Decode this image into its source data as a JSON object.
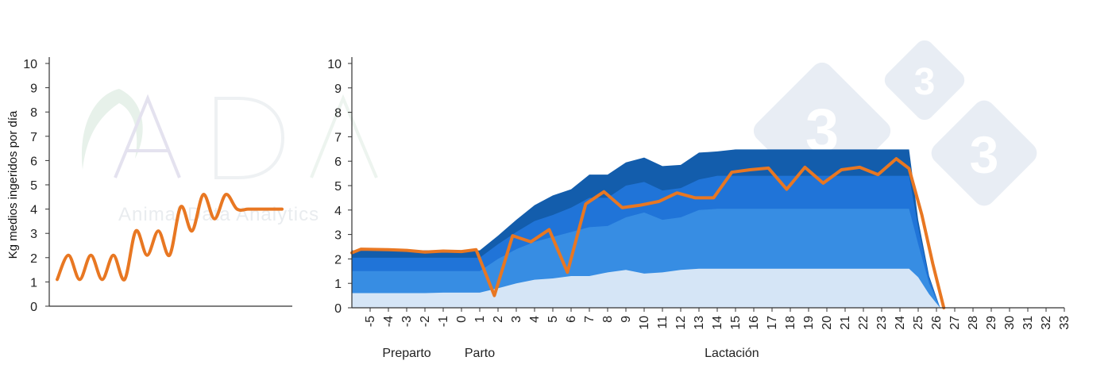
{
  "colors": {
    "orange": "#E87722",
    "band1": "#D5E5F6",
    "band2": "#378DE3",
    "band3": "#2074D8",
    "band4": "#135DAC",
    "axis": "#333333",
    "watermark_diamond": "#E8EDF4"
  },
  "watermarks": {
    "logo_text": "ADA",
    "logo_subtitle": "Animal Data Analytics",
    "logo_digit": "3"
  },
  "chart_data": [
    {
      "type": "line",
      "title": "",
      "ylabel": "Kg medios ingeridos por día",
      "xlabel": "",
      "ylim": [
        0,
        10
      ],
      "yticks": [
        "0",
        "1",
        "2",
        "3",
        "4",
        "5",
        "6",
        "7",
        "8",
        "9",
        "10"
      ],
      "grid": false,
      "x": [
        0,
        0.05,
        0.1,
        0.15,
        0.2,
        0.25,
        0.3,
        0.35,
        0.4,
        0.45,
        0.5,
        0.55,
        0.6,
        0.65,
        0.7,
        0.75,
        0.8,
        0.85,
        0.9,
        0.95,
        1.0
      ],
      "series": [
        {
          "values": [
            1.1,
            2.1,
            1.1,
            2.1,
            1.1,
            2.1,
            1.1,
            3.1,
            2.1,
            3.1,
            2.1,
            4.1,
            3.1,
            4.6,
            3.6,
            4.6,
            4.0,
            4.0,
            4.0,
            4.0,
            4.0
          ]
        }
      ]
    },
    {
      "type": "area",
      "title": "",
      "xlabel": "",
      "ylabel": "",
      "ylim": [
        0,
        10
      ],
      "yticks": [
        "0",
        "1",
        "2",
        "3",
        "4",
        "5",
        "6",
        "7",
        "8",
        "9",
        "10"
      ],
      "grid": false,
      "x": [
        -6,
        -5,
        -4,
        -3,
        -2,
        -1,
        0,
        1,
        2,
        3,
        4,
        5,
        6,
        7,
        8,
        9,
        10,
        11,
        12,
        13,
        14,
        15,
        16,
        17,
        18,
        19,
        20,
        21,
        22,
        23,
        24,
        25,
        26,
        27,
        28,
        29,
        30,
        31,
        32,
        33
      ],
      "x_tick_labels": [
        "-5",
        "-4",
        "-3",
        "-2",
        "-1",
        "0",
        "1",
        "2",
        "3",
        "4",
        "5",
        "6",
        "7",
        "8",
        "9",
        "10",
        "11",
        "12",
        "13",
        "14",
        "15",
        "16",
        "17",
        "18",
        "19",
        "20",
        "21",
        "22",
        "23",
        "24",
        "25",
        "26",
        "27",
        "28",
        "29",
        "30",
        "31",
        "32",
        "33"
      ],
      "x_tick_values": [
        -5,
        -4,
        -3,
        -2,
        -1,
        0,
        1,
        2,
        3,
        4,
        5,
        6,
        7,
        8,
        9,
        10,
        11,
        12,
        13,
        14,
        15,
        16,
        17,
        18,
        19,
        20,
        21,
        22,
        23,
        24,
        25,
        26,
        27,
        28,
        29,
        30,
        31,
        32,
        33
      ],
      "phases": [
        {
          "label": "Preparto",
          "at": -3
        },
        {
          "label": "Parto",
          "at": 1
        },
        {
          "label": "Lactación",
          "at": 14.8
        }
      ],
      "bands": [
        {
          "x": [
            -6,
            -5.5,
            -4,
            -3,
            -2,
            -1,
            0,
            1,
            2,
            3,
            4,
            5,
            6,
            7,
            8,
            9,
            10,
            11,
            12,
            13,
            14,
            15,
            16,
            17,
            18,
            19,
            20,
            21,
            22,
            23,
            24,
            24.5,
            25,
            25.6,
            26.2
          ],
          "values": [
            0.6,
            0.6,
            0.6,
            0.6,
            0.6,
            0.62,
            0.62,
            0.62,
            0.8,
            1.0,
            1.15,
            1.2,
            1.3,
            1.3,
            1.45,
            1.55,
            1.4,
            1.45,
            1.55,
            1.6,
            1.6,
            1.6,
            1.6,
            1.6,
            1.6,
            1.6,
            1.6,
            1.6,
            1.6,
            1.6,
            1.6,
            1.6,
            1.25,
            0.55,
            0.0
          ]
        },
        {
          "x": [
            -6,
            -5.5,
            -4,
            -3,
            -2,
            -1,
            0,
            1,
            2,
            3,
            4,
            5,
            6,
            7,
            8,
            9,
            10,
            11,
            12,
            13,
            14,
            15,
            16,
            17,
            18,
            19,
            20,
            21,
            22,
            23,
            24,
            24.5,
            25,
            25.6,
            26.2
          ],
          "values": [
            1.5,
            1.5,
            1.5,
            1.5,
            1.5,
            1.5,
            1.5,
            1.5,
            2.0,
            2.4,
            2.7,
            2.9,
            3.1,
            3.3,
            3.35,
            3.7,
            3.9,
            3.6,
            3.7,
            4.0,
            4.05,
            4.05,
            4.05,
            4.05,
            4.05,
            4.05,
            4.05,
            4.05,
            4.05,
            4.05,
            4.05,
            4.05,
            2.6,
            1.0,
            0.0
          ]
        },
        {
          "x": [
            -6,
            -5.5,
            -4,
            -3,
            -2,
            -1,
            0,
            1,
            2,
            3,
            4,
            5,
            6,
            7,
            8,
            9,
            10,
            11,
            12,
            13,
            14,
            15,
            16,
            17,
            18,
            19,
            20,
            21,
            22,
            23,
            24,
            24.5,
            25,
            25.6,
            26.2
          ],
          "values": [
            2.05,
            2.05,
            2.05,
            2.05,
            2.05,
            2.05,
            2.05,
            2.05,
            2.6,
            3.1,
            3.55,
            3.8,
            4.1,
            4.5,
            4.5,
            5.0,
            5.15,
            4.8,
            4.9,
            5.25,
            5.4,
            5.4,
            5.4,
            5.4,
            5.4,
            5.4,
            5.4,
            5.4,
            5.4,
            5.4,
            5.4,
            5.4,
            3.3,
            1.2,
            0.0
          ]
        },
        {
          "x": [
            -6,
            -5.5,
            -4,
            -3,
            -2,
            -1,
            0,
            1,
            2,
            3,
            4,
            5,
            6,
            7,
            8,
            9,
            10,
            11,
            12,
            13,
            14,
            15,
            16,
            17,
            18,
            19,
            20,
            21,
            22,
            23,
            24,
            24.5,
            25,
            25.6,
            26.2
          ],
          "values": [
            2.35,
            2.35,
            2.35,
            2.35,
            2.35,
            2.35,
            2.35,
            2.35,
            2.95,
            3.6,
            4.2,
            4.6,
            4.85,
            5.45,
            5.45,
            5.95,
            6.15,
            5.8,
            5.85,
            6.35,
            6.4,
            6.48,
            6.48,
            6.48,
            6.48,
            6.48,
            6.48,
            6.48,
            6.48,
            6.48,
            6.48,
            6.48,
            3.6,
            1.3,
            0.0
          ]
        }
      ],
      "series": [
        {
          "x": [
            -6,
            -5.5,
            -4,
            -3,
            -2,
            -1,
            0,
            0.8,
            1.8,
            2.8,
            3.8,
            4.8,
            5.8,
            6.8,
            7.8,
            8.8,
            9.8,
            10.8,
            11.8,
            12.8,
            13.8,
            14.8,
            15.8,
            16.8,
            17.8,
            18.8,
            19.8,
            20.8,
            21.8,
            22.8,
            23.8,
            24.5,
            25.2,
            25.8,
            26.4
          ],
          "values": [
            2.25,
            2.4,
            2.38,
            2.35,
            2.28,
            2.32,
            2.3,
            2.38,
            0.5,
            2.95,
            2.7,
            3.2,
            1.45,
            4.25,
            4.75,
            4.1,
            4.2,
            4.35,
            4.7,
            4.5,
            4.5,
            5.55,
            5.65,
            5.72,
            4.85,
            5.75,
            5.1,
            5.65,
            5.75,
            5.45,
            6.1,
            5.7,
            3.8,
            1.8,
            0.0
          ]
        }
      ]
    }
  ]
}
